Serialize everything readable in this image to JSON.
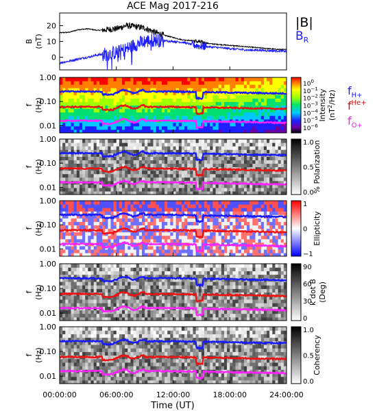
{
  "figure": {
    "title": "ACE Mag 2017-216",
    "x_axis_label": "Time (UT)",
    "x_tick_labels": [
      "00:00:00",
      "06:00:00",
      "12:00:00",
      "18:00:00",
      "24:00:00"
    ],
    "colors": {
      "B": "#000000",
      "BR": "#1a1aff",
      "fH": "#1a1aff",
      "fHe": "#ee1111",
      "fO": "#ff22ff"
    }
  },
  "chart_data": [
    {
      "type": "line",
      "panel": "magnetic-field",
      "ylabel_main": "B",
      "ylabel_unit": "(nT)",
      "ylim": [
        -8,
        28
      ],
      "y_ticks": [
        20,
        10,
        0
      ],
      "y_tick_labels": [
        "20",
        "10",
        "0"
      ],
      "legend": {
        "B": "|B|",
        "BR_main": "B",
        "BR_sub": "R"
      },
      "x_hours": [
        0,
        1,
        2,
        3,
        4,
        5,
        6,
        7,
        8,
        9,
        10,
        11,
        12,
        13,
        14,
        15,
        16,
        17,
        18,
        19,
        20,
        21,
        22,
        23,
        24
      ],
      "series": [
        {
          "values": [
            15.5,
            15.8,
            17.5,
            18.0,
            17.0,
            17.5,
            18.0,
            20.0,
            19.5,
            18.5,
            16.0,
            14.0,
            12.5,
            11.0,
            10.5,
            9.5,
            8.5,
            8.0,
            7.5,
            7.0,
            6.5,
            6.0,
            5.5,
            5.0,
            4.8
          ]
        },
        {
          "values": [
            -3.5,
            -2.5,
            -1.0,
            0.0,
            1.5,
            2.0,
            3.0,
            5.0,
            8.0,
            10.0,
            11.0,
            10.5,
            10.0,
            9.5,
            8.0,
            7.0,
            6.5,
            6.0,
            5.5,
            5.0,
            4.5,
            4.5,
            4.2,
            4.0,
            3.8
          ]
        }
      ]
    },
    {
      "type": "heatmap",
      "panel": "power-spectrum",
      "ylabel_main": "f",
      "ylabel_unit": "(Hz)",
      "y_scale": "log",
      "y_tick_labels": [
        "1.00",
        "0.10",
        "0.01"
      ],
      "colorbar": {
        "label_main": "Intensity",
        "label_unit_pre": "(nT",
        "label_unit_sup": "2",
        "label_unit_post": "/Hz)",
        "tick_labels_base": [
          "10",
          "10",
          "10",
          "10",
          "10",
          "10",
          "10"
        ],
        "tick_labels_exp": [
          "0",
          "−1",
          "−2",
          "−3",
          "−4",
          "−5",
          "−6"
        ],
        "scale": "rainbow"
      },
      "line_labels": [
        {
          "main": "f",
          "sub": "H+",
          "sup": "",
          "color": "#1a1aff"
        },
        {
          "main": "f",
          "sub": "",
          "sup": "He+",
          "color": "#cc1111"
        },
        {
          "main": "f",
          "sub": "O+",
          "sup": "",
          "color": "#ee22ee"
        }
      ]
    },
    {
      "type": "heatmap",
      "panel": "polarization",
      "ylabel_main": "f",
      "ylabel_unit": "(Hz)",
      "y_scale": "log",
      "y_tick_labels": [
        "1.00",
        "0.10",
        "0.01"
      ],
      "colorbar": {
        "label": "% Polarization",
        "tick_labels": [
          "1.0",
          "0.5",
          "0.0"
        ],
        "scale": "gray"
      }
    },
    {
      "type": "heatmap",
      "panel": "ellipticity",
      "ylabel_main": "f",
      "ylabel_unit": "(Hz)",
      "y_scale": "log",
      "y_tick_labels": [
        "1.00",
        "0.10",
        "0.01"
      ],
      "colorbar": {
        "label": "Ellipticity",
        "tick_labels": [
          "1",
          "0",
          "−1"
        ],
        "scale": "bwr"
      }
    },
    {
      "type": "heatmap",
      "panel": "k-dot-b",
      "ylabel_main": "f",
      "ylabel_unit": "(Hz)",
      "y_scale": "log",
      "y_tick_labels": [
        "1.00",
        "0.10",
        "0.01"
      ],
      "colorbar": {
        "label_main": "k dot B",
        "label_unit": "(Deg)",
        "tick_labels": [
          "90",
          "60",
          "30",
          "0"
        ],
        "scale": "gray"
      }
    },
    {
      "type": "heatmap",
      "panel": "coherency",
      "ylabel_main": "f",
      "ylabel_unit": "(Hz)",
      "y_scale": "log",
      "y_tick_labels": [
        "1.00",
        "0.10",
        "0.01"
      ],
      "colorbar": {
        "label": "Coherency",
        "tick_labels": [
          "1.0",
          "0.5",
          "0.0"
        ],
        "scale": "gray"
      }
    }
  ]
}
